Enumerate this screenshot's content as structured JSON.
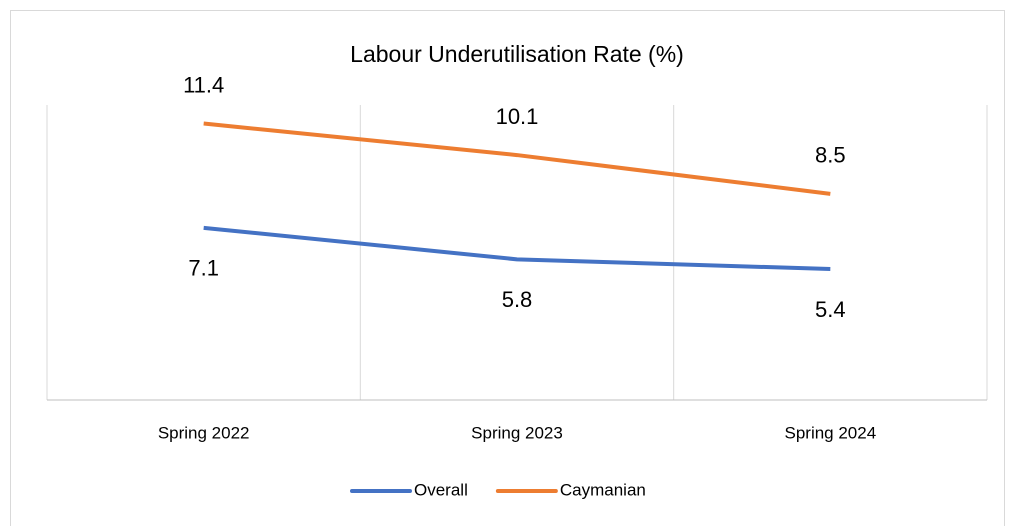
{
  "chart_data": {
    "type": "line",
    "title": "Labour Underutilisation Rate (%)",
    "categories": [
      "Spring 2022",
      "Spring 2023",
      "Spring 2024"
    ],
    "series": [
      {
        "name": "Overall",
        "color": "#4472c4",
        "values": [
          7.1,
          5.8,
          5.4
        ]
      },
      {
        "name": "Caymanian",
        "color": "#ed7d31",
        "values": [
          11.4,
          10.1,
          8.5
        ]
      }
    ],
    "ylim": [
      0,
      12
    ],
    "legend": "bottom"
  }
}
